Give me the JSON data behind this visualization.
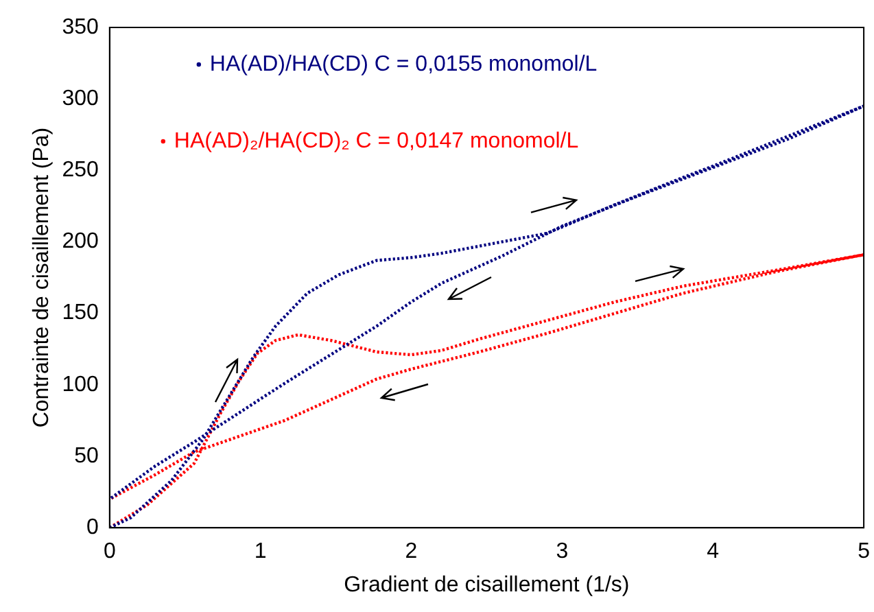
{
  "chart_data": {
    "type": "line",
    "line_style": "dotted",
    "xlabel": "Gradient de cisaillement (1/s)",
    "ylabel": "Contrainte de cisaillement (Pa)",
    "xlim": [
      0,
      5
    ],
    "xticks": [
      0,
      1,
      2,
      3,
      4,
      5
    ],
    "ylim": [
      0,
      350
    ],
    "yticks": [
      0,
      50,
      100,
      150,
      200,
      250,
      300,
      350
    ],
    "grid": false,
    "legend": "top",
    "marker": "none",
    "series": [
      {
        "name": "HA(AD)/HA(CD) C = 0,0155 monomol/L",
        "color": "#000080",
        "x": [
          0,
          0.14,
          0.41,
          0.62,
          0.77,
          0.95,
          1.1,
          1.31,
          1.52,
          1.77,
          2.0,
          2.2,
          2.45,
          2.9,
          3.35,
          3.8,
          4.0,
          4.5,
          5.0,
          4.5,
          4.0,
          3.5,
          3.0,
          2.6,
          2.2,
          2.0,
          1.77,
          1.16,
          0.56,
          0.3,
          0
        ],
        "values": [
          0,
          7,
          33,
          62,
          88,
          119,
          141,
          164,
          177,
          187,
          189,
          192,
          197,
          206,
          226,
          245,
          253,
          274,
          295,
          272,
          252,
          232,
          211,
          190,
          171,
          158,
          141,
          101,
          60,
          43,
          20
        ]
      },
      {
        "name": "HA(AD)₂/HA(CD)₂ C = 0,0147 monomol/L",
        "color": "#ff0000",
        "x": [
          0,
          0.25,
          0.56,
          0.74,
          0.86,
          0.98,
          1.1,
          1.25,
          1.47,
          1.77,
          2.0,
          2.2,
          2.45,
          2.9,
          3.35,
          3.8,
          4.41,
          5.0,
          4.41,
          3.8,
          3.35,
          2.9,
          2.45,
          2.0,
          1.77,
          1.16,
          0.56,
          0.3,
          0
        ],
        "values": [
          0,
          16,
          45,
          81,
          103,
          122,
          131,
          135,
          131,
          123,
          121,
          124,
          132,
          145,
          158,
          169,
          180,
          191,
          179,
          164,
          150,
          136,
          123,
          111,
          104,
          75,
          53,
          37,
          20
        ]
      }
    ]
  }
}
